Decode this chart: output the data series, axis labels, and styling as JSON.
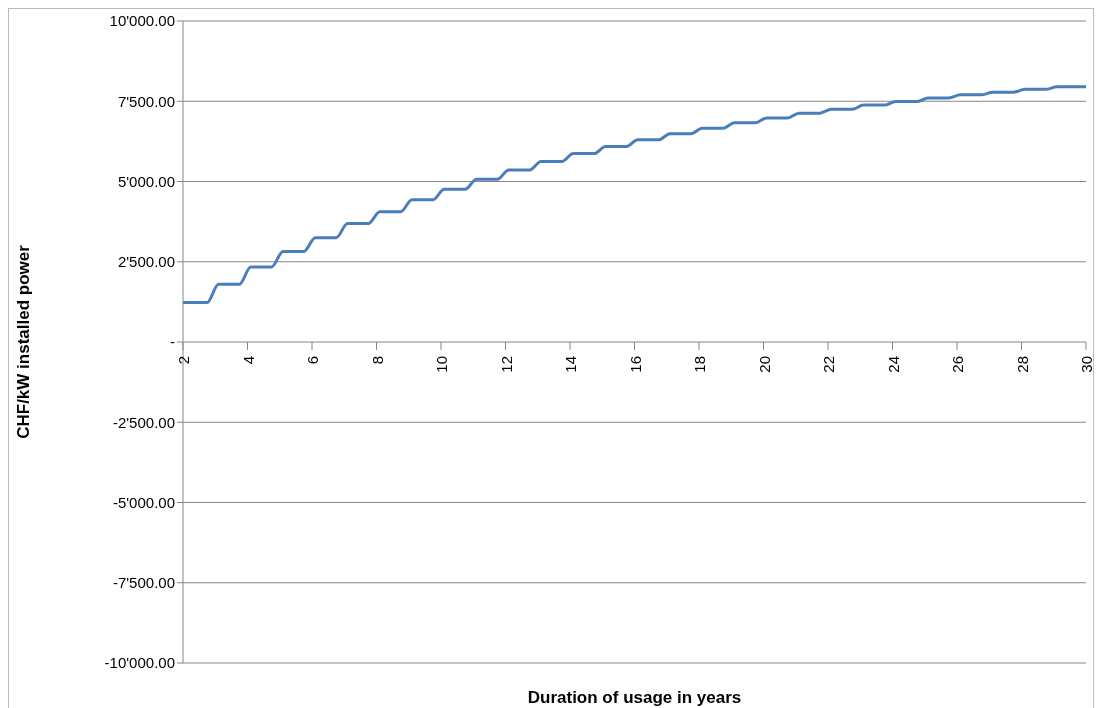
{
  "chart_data": {
    "type": "line",
    "xlabel": "Duration of usage in years",
    "ylabel": "CHF/kW installed power",
    "x": [
      2,
      2.75,
      3.1,
      3.75,
      4.1,
      4.75,
      5.1,
      5.75,
      6.1,
      6.75,
      7.1,
      7.75,
      8.1,
      8.75,
      9.1,
      9.75,
      10.1,
      10.75,
      11.1,
      11.75,
      12.1,
      12.75,
      13.1,
      13.75,
      14.1,
      14.75,
      15.1,
      15.75,
      16.1,
      16.75,
      17.1,
      17.75,
      18.1,
      18.75,
      19.1,
      19.75,
      20.1,
      20.75,
      21.1,
      21.75,
      22.1,
      22.75,
      23.1,
      23.75,
      24.1,
      24.75,
      25.1,
      25.75,
      26.1,
      26.75,
      27.1,
      27.75,
      28.1,
      28.75,
      29.1,
      29.75,
      30
    ],
    "series": [
      {
        "color": "#4a7ebb",
        "values": [
          1230,
          1230,
          1800,
          1800,
          2340,
          2340,
          2820,
          2820,
          3250,
          3250,
          3690,
          3690,
          4060,
          4060,
          4430,
          4430,
          4760,
          4760,
          5070,
          5070,
          5360,
          5360,
          5620,
          5620,
          5870,
          5870,
          6090,
          6090,
          6300,
          6300,
          6490,
          6490,
          6660,
          6660,
          6830,
          6830,
          6980,
          6980,
          7130,
          7130,
          7250,
          7250,
          7380,
          7380,
          7490,
          7490,
          7600,
          7600,
          7700,
          7700,
          7780,
          7780,
          7870,
          7870,
          7950,
          7950,
          7950
        ]
      }
    ],
    "xlim": [
      2,
      30
    ],
    "xticks": [
      2,
      4,
      6,
      8,
      10,
      12,
      14,
      16,
      18,
      20,
      22,
      24,
      26,
      28,
      30
    ],
    "ylim": [
      -10000,
      10000
    ],
    "yticks": [
      {
        "value": -10000,
        "label": "-10'000.00"
      },
      {
        "value": -7500,
        "label": "-7'500.00"
      },
      {
        "value": -5000,
        "label": "-5'000.00"
      },
      {
        "value": -2500,
        "label": "-2'500.00"
      },
      {
        "value": 0,
        "label": "-"
      },
      {
        "value": 2500,
        "label": "2'500.00"
      },
      {
        "value": 5000,
        "label": "5'000.00"
      },
      {
        "value": 7500,
        "label": "7'500.00"
      },
      {
        "value": 10000,
        "label": "10'000.00"
      }
    ],
    "grid": "y",
    "legend": false,
    "marker": "none",
    "line_style": "solid"
  }
}
